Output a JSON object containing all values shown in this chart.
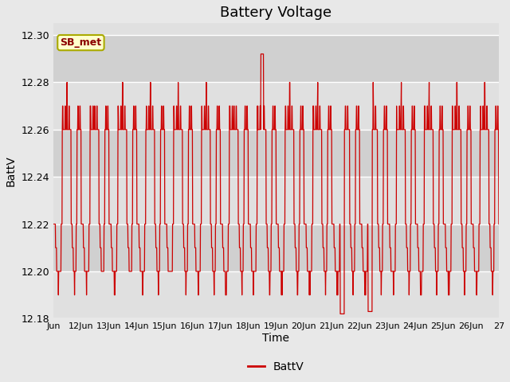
{
  "title": "Battery Voltage",
  "xlabel": "Time",
  "ylabel": "BattV",
  "legend_label": "BattV",
  "line_color": "#cc0000",
  "fig_bg_color": "#e8e8e8",
  "plot_bg_color": "#e0e0e0",
  "plot_bg_color2": "#d0d0d0",
  "ylim": [
    12.18,
    12.305
  ],
  "yticks": [
    12.18,
    12.2,
    12.22,
    12.24,
    12.26,
    12.28,
    12.3
  ],
  "xtick_labels": [
    "Jun",
    "12Jun",
    "13Jun",
    "14Jun",
    "15Jun",
    "16Jun",
    "17Jun",
    "18Jun",
    "19Jun",
    "20Jun",
    "21Jun",
    "22Jun",
    "23Jun",
    "24Jun",
    "25Jun",
    "26Jun",
    "27"
  ],
  "annotation_text": "SB_met",
  "seed": 12345
}
